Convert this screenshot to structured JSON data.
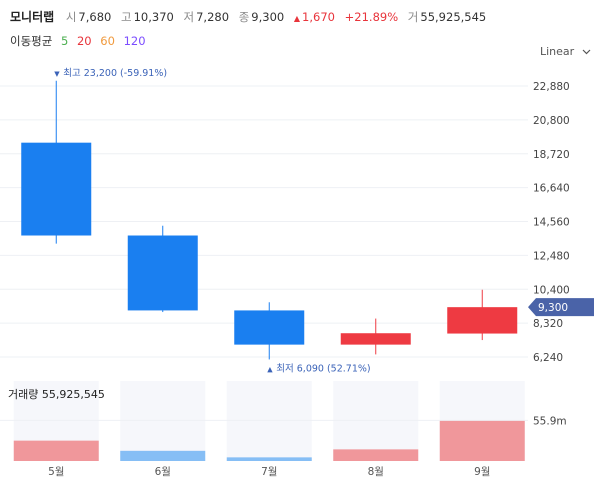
{
  "header": {
    "name": "모니터랩",
    "open_label": "시",
    "open_value": "7,680",
    "high_label": "고",
    "high_value": "10,370",
    "low_label": "저",
    "low_value": "7,280",
    "close_label": "종",
    "close_value": "9,300",
    "change_arrow": "▲",
    "change_value": "1,670",
    "change_pct": "+21.89%",
    "volume_label": "거",
    "volume_value": "55,925,545"
  },
  "moving_average": {
    "label": "이동평균",
    "periods": [
      {
        "label": "5",
        "color": "#4caf50"
      },
      {
        "label": "20",
        "color": "#e8343b"
      },
      {
        "label": "60",
        "color": "#f09a3e"
      },
      {
        "label": "120",
        "color": "#7c4dff"
      }
    ]
  },
  "scale_selector": {
    "label": "Linear",
    "icon": "chevron-down-icon"
  },
  "colors": {
    "up": "#ee3a42",
    "down": "#1a7ff0",
    "up_vol": "#f0979b",
    "down_vol": "#86bef5",
    "vol_bg": "#f6f7fb",
    "grid": "#eef0f4",
    "annotation": "#3b63b8",
    "price_tag": "#4a63a8"
  },
  "chart_data": {
    "type": "candlestick",
    "categories": [
      "5월",
      "6월",
      "7월",
      "8월",
      "9월"
    ],
    "candles": [
      {
        "open": 19400,
        "high": 23200,
        "low": 13200,
        "close": 13700
      },
      {
        "open": 13700,
        "high": 14300,
        "low": 9000,
        "close": 9100
      },
      {
        "open": 9100,
        "high": 9600,
        "low": 6090,
        "close": 7000
      },
      {
        "open": 7000,
        "high": 8600,
        "low": 6400,
        "close": 7700
      },
      {
        "open": 7680,
        "high": 10370,
        "low": 7280,
        "close": 9300
      }
    ],
    "y_ticks": [
      "22,880",
      "20,800",
      "18,720",
      "16,640",
      "14,560",
      "12,480",
      "10,400",
      "8,320",
      "6,240"
    ],
    "y_tick_values": [
      22880,
      20800,
      18720,
      16640,
      14560,
      12480,
      10400,
      8320,
      6240
    ],
    "ylim": [
      5000,
      24800
    ],
    "max_annotation": {
      "arrow": "▼",
      "text": "최고 23,200 (-59.91%)",
      "value": 23200,
      "index": 0
    },
    "min_annotation": {
      "arrow": "▲",
      "text": "최저 6,090 (52.71%)",
      "value": 6090,
      "index": 2
    },
    "last_price_label": "9,300",
    "last_price_value": 9300,
    "volume": {
      "label": "거래량 55,925,545",
      "axis_label": "55.9m",
      "axis_value": 55900000,
      "max": 110000000,
      "values": [
        28000000,
        14000000,
        5000000,
        16000000,
        55925545
      ],
      "directions": [
        "up",
        "down",
        "down",
        "up",
        "up"
      ]
    }
  }
}
